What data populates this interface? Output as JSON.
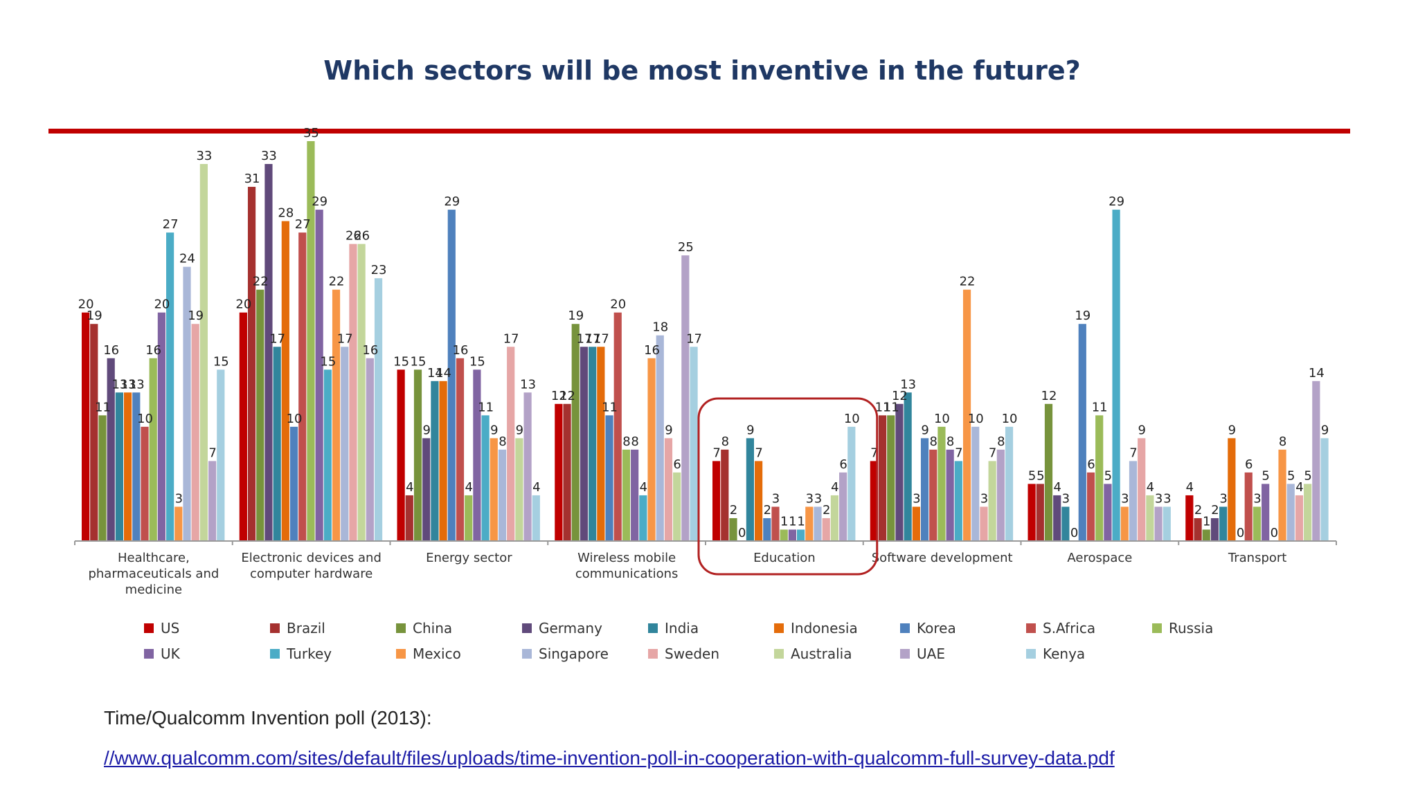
{
  "source": {
    "text": "Time/Qualcomm Invention poll (2013):",
    "link": "//www.qualcomm.com/sites/default/files/uploads/time-invention-poll-in-cooperation-with-qualcomm-full-survey-data.pdf"
  },
  "colors": {
    "title": "#1f3864",
    "accent_rule": "#c00000",
    "highlight_box": "#b22222"
  },
  "highlighted_category": "Education",
  "chart_data": {
    "type": "bar",
    "title": "Which sectors will be most inventive in the future?",
    "xlabel": "",
    "ylabel": "",
    "ylim": [
      0,
      35
    ],
    "grid": false,
    "legend_position": "bottom",
    "categories": [
      "Healthcare, pharmaceuticals and medicine",
      "Electronic devices and computer hardware",
      "Energy sector",
      "Wireless mobile communications",
      "Education",
      "Software development",
      "Aerospace",
      "Transport"
    ],
    "series": [
      {
        "name": "US",
        "color": "#c00000",
        "values": [
          20,
          20,
          15,
          12,
          7,
          7,
          5,
          4
        ]
      },
      {
        "name": "Brazil",
        "color": "#a5312f",
        "values": [
          19,
          31,
          4,
          12,
          8,
          11,
          5,
          2
        ]
      },
      {
        "name": "China",
        "color": "#77933c",
        "values": [
          11,
          22,
          15,
          19,
          2,
          11,
          12,
          1
        ]
      },
      {
        "name": "Germany",
        "color": "#604a7b",
        "values": [
          16,
          33,
          9,
          17,
          0,
          12,
          4,
          2
        ]
      },
      {
        "name": "India",
        "color": "#31859c",
        "values": [
          13,
          17,
          14,
          17,
          9,
          13,
          3,
          3
        ]
      },
      {
        "name": "Indonesia",
        "color": "#e46c0a",
        "values": [
          13,
          28,
          14,
          17,
          7,
          3,
          0,
          9
        ]
      },
      {
        "name": "Korea",
        "color": "#4f81bd",
        "values": [
          13,
          10,
          29,
          11,
          2,
          9,
          19,
          0
        ]
      },
      {
        "name": "S.Africa",
        "color": "#c0504d",
        "values": [
          10,
          27,
          16,
          20,
          3,
          8,
          6,
          6
        ]
      },
      {
        "name": "Russia",
        "color": "#9bbb59",
        "values": [
          16,
          35,
          4,
          8,
          1,
          10,
          11,
          3
        ]
      },
      {
        "name": "UK",
        "color": "#8064a2",
        "values": [
          20,
          29,
          15,
          8,
          1,
          8,
          5,
          5
        ]
      },
      {
        "name": "Turkey",
        "color": "#4bacc6",
        "values": [
          27,
          15,
          11,
          4,
          1,
          7,
          29,
          0
        ]
      },
      {
        "name": "Mexico",
        "color": "#f79646",
        "values": [
          3,
          22,
          9,
          16,
          3,
          22,
          3,
          8
        ]
      },
      {
        "name": "Singapore",
        "color": "#a9b7d8",
        "values": [
          24,
          17,
          8,
          18,
          3,
          10,
          7,
          5
        ]
      },
      {
        "name": "Sweden",
        "color": "#e6a6a6",
        "values": [
          19,
          26,
          17,
          9,
          2,
          3,
          9,
          4
        ]
      },
      {
        "name": "Australia",
        "color": "#c3d69b",
        "values": [
          33,
          26,
          9,
          6,
          4,
          7,
          4,
          5
        ]
      },
      {
        "name": "UAE",
        "color": "#b3a2c7",
        "values": [
          7,
          16,
          13,
          25,
          6,
          8,
          3,
          14
        ]
      },
      {
        "name": "Kenya",
        "color": "#a5cfe0",
        "values": [
          15,
          23,
          4,
          17,
          10,
          10,
          3,
          9
        ]
      }
    ]
  }
}
